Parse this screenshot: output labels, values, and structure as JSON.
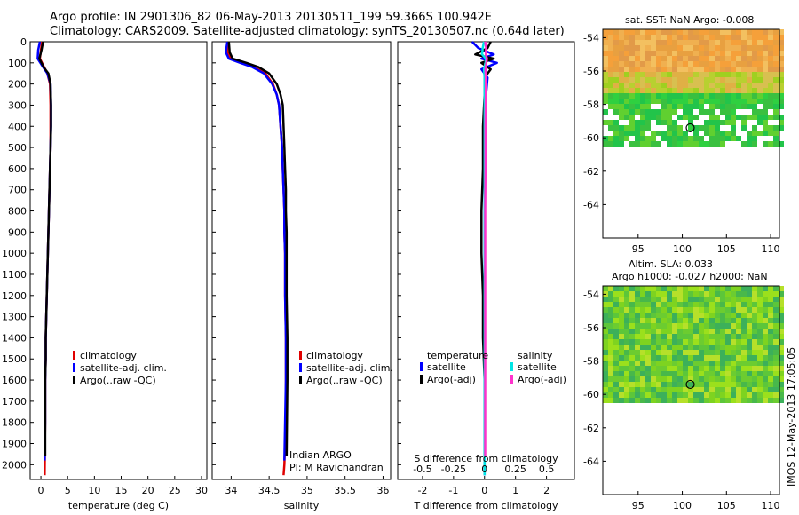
{
  "header": {
    "title_line1": "Argo profile: IN 2901306_82 06-May-2013 20130511_199 59.366S 100.942E",
    "title_line2": "Climatology: CARS2009. Satellite-adjusted climatology: synTS_20130507.nc (0.64d later)"
  },
  "side_label": "IMOS 12-May-2013 17:05:05",
  "colors": {
    "clim": "#e00000",
    "sat": "#0000ff",
    "argo": "#000000",
    "sal_sat": "#00e5e5",
    "sal_argo": "#ff33cc"
  },
  "chart_data": [
    {
      "type": "line",
      "id": "temperature",
      "xlabel": "temperature (deg C)",
      "xlim": [
        -2,
        31
      ],
      "ylim": [
        2070,
        0
      ],
      "xticks": [
        0,
        5,
        10,
        15,
        20,
        25,
        30
      ],
      "yticks": [
        0,
        100,
        200,
        300,
        400,
        500,
        600,
        700,
        800,
        900,
        1000,
        1100,
        1200,
        1300,
        1400,
        1500,
        1600,
        1700,
        1800,
        1900,
        2000
      ],
      "legend": [
        "climatology",
        "satellite-adj. clim.",
        "Argo(..raw -QC)"
      ],
      "series": [
        {
          "name": "climatology",
          "color": "#e00000",
          "x": [
            0.2,
            0.0,
            -0.2,
            0.6,
            1.2,
            1.7,
            1.8,
            1.8,
            1.8,
            1.7,
            1.6,
            1.5,
            1.4,
            1.3,
            1.2,
            1.1,
            1.0,
            0.9,
            0.9,
            0.8,
            0.8,
            0.7
          ],
          "y": [
            0,
            40,
            80,
            120,
            150,
            200,
            300,
            400,
            500,
            600,
            700,
            800,
            900,
            1000,
            1100,
            1200,
            1300,
            1400,
            1500,
            1600,
            1800,
            2050
          ]
        },
        {
          "name": "satellite-adj. clim.",
          "color": "#0000ff",
          "x": [
            -0.2,
            -0.5,
            -0.6,
            0.4,
            1.2,
            1.8,
            1.9,
            1.9,
            1.8,
            1.7,
            1.6,
            1.5,
            1.4,
            1.3,
            1.2,
            1.1,
            1.0,
            0.9,
            0.9,
            0.8,
            0.8,
            0.7
          ],
          "y": [
            0,
            40,
            80,
            120,
            150,
            200,
            300,
            400,
            500,
            600,
            700,
            800,
            900,
            1000,
            1100,
            1200,
            1300,
            1400,
            1500,
            1600,
            1800,
            1980
          ]
        },
        {
          "name": "Argo(..raw -QC)",
          "color": "#000000",
          "x": [
            0.4,
            0.1,
            -0.3,
            0.5,
            1.4,
            1.8,
            1.9,
            1.9,
            1.8,
            1.7,
            1.6,
            1.5,
            1.4,
            1.3,
            1.2,
            1.1,
            1.0,
            0.9,
            0.9,
            0.8,
            0.8
          ],
          "y": [
            0,
            40,
            80,
            120,
            150,
            200,
            300,
            400,
            500,
            600,
            700,
            800,
            900,
            1000,
            1100,
            1200,
            1300,
            1400,
            1500,
            1600,
            1960
          ]
        }
      ]
    },
    {
      "type": "line",
      "id": "salinity",
      "xlabel": "salinity",
      "xlim": [
        33.75,
        36.1
      ],
      "ylim": [
        2070,
        0
      ],
      "xticks": [
        34,
        34.5,
        35,
        35.5,
        36
      ],
      "legend": [
        "climatology",
        "satellite-adj. clim.",
        "Argo(..raw -QC)"
      ],
      "annotation": [
        "Indian ARGO",
        "PI: M Ravichandran"
      ],
      "series": [
        {
          "name": "climatology",
          "color": "#e00000",
          "x": [
            33.95,
            33.95,
            34.0,
            34.15,
            34.3,
            34.45,
            34.55,
            34.6,
            34.63,
            34.65,
            34.67,
            34.68,
            34.69,
            34.7,
            34.7,
            34.71,
            34.71,
            34.72,
            34.72,
            34.72,
            34.72,
            34.7,
            34.69
          ],
          "y": [
            0,
            50,
            80,
            100,
            120,
            150,
            200,
            250,
            300,
            400,
            500,
            600,
            700,
            800,
            900,
            1000,
            1200,
            1400,
            1500,
            1600,
            1800,
            2000,
            2050
          ]
        },
        {
          "name": "satellite-adj. clim.",
          "color": "#0000ff",
          "x": [
            33.95,
            33.93,
            33.97,
            34.12,
            34.28,
            34.43,
            34.54,
            34.6,
            34.63,
            34.65,
            34.67,
            34.68,
            34.69,
            34.7,
            34.7,
            34.71,
            34.71,
            34.72,
            34.72,
            34.72,
            34.71,
            34.7
          ],
          "y": [
            0,
            50,
            80,
            100,
            120,
            150,
            200,
            250,
            300,
            400,
            500,
            600,
            700,
            800,
            900,
            1000,
            1200,
            1400,
            1500,
            1600,
            1800,
            1980
          ]
        },
        {
          "name": "Argo(..raw -QC)",
          "color": "#000000",
          "x": [
            33.97,
            33.98,
            34.02,
            34.2,
            34.36,
            34.5,
            34.6,
            34.65,
            34.68,
            34.69,
            34.7,
            34.71,
            34.72,
            34.72,
            34.73,
            34.73,
            34.73,
            34.74,
            34.74,
            34.74,
            34.73
          ],
          "y": [
            0,
            50,
            80,
            100,
            120,
            150,
            200,
            250,
            300,
            400,
            500,
            600,
            700,
            800,
            900,
            1000,
            1200,
            1400,
            1500,
            1600,
            1960
          ]
        }
      ]
    },
    {
      "type": "line",
      "id": "differences",
      "xlabel": "T difference from climatology",
      "top_label": "S difference from climatology",
      "xlim": [
        -2.8,
        2.9
      ],
      "ylim": [
        2070,
        0
      ],
      "xticks": [
        -2,
        -1,
        0,
        1,
        2
      ],
      "top_ticks": [
        "-0.5",
        "-0.25",
        "0",
        "0.25",
        "0.5"
      ],
      "top_xlim": [
        -0.7,
        0.725
      ],
      "legend_temperature_title": "temperature",
      "legend_salinity_title": "salinity",
      "legend_temperature": [
        "satellite",
        "Argo(-adj)"
      ],
      "legend_salinity": [
        "satellite",
        "Argo(-adj)"
      ],
      "series": [
        {
          "name": "T satellite",
          "color": "#0000ff",
          "x": [
            -0.4,
            -0.2,
            0.3,
            -0.1,
            0.4,
            -0.1,
            0.1,
            0.05,
            0.0,
            0.0,
            0.0,
            0.0,
            0.0,
            0.0,
            0.0,
            0.0,
            0.0,
            0.0
          ],
          "y": [
            0,
            30,
            60,
            80,
            100,
            130,
            170,
            250,
            400,
            600,
            800,
            1000,
            1200,
            1400,
            1600,
            1800,
            2000,
            2050
          ]
        },
        {
          "name": "T Argo(-adj)",
          "color": "#000000",
          "x": [
            0.2,
            0.1,
            -0.3,
            0.3,
            -0.1,
            0.2,
            0.0,
            0.0,
            -0.05,
            -0.05,
            -0.1,
            -0.1,
            -0.05,
            -0.05,
            0.0,
            0.0,
            0.0,
            0.0
          ],
          "y": [
            0,
            30,
            60,
            80,
            100,
            130,
            170,
            250,
            400,
            600,
            800,
            1000,
            1200,
            1400,
            1600,
            1800,
            1900,
            1960
          ]
        },
        {
          "name": "S satellite",
          "color": "#00e5e5",
          "x": [
            -0.02,
            -0.06,
            -0.08,
            0.05,
            0.03,
            -0.02,
            0.0,
            0.0,
            0.0,
            0.0,
            0.0,
            0.0,
            0.0,
            0.0,
            0.0,
            0.0,
            0.0,
            0.0
          ],
          "y": [
            0,
            30,
            60,
            80,
            100,
            130,
            170,
            250,
            400,
            600,
            800,
            1000,
            1200,
            1400,
            1600,
            1800,
            2000,
            2050
          ]
        },
        {
          "name": "S Argo(-adj)",
          "color": "#ff33cc",
          "x": [
            0.02,
            0.05,
            0.04,
            0.08,
            0.06,
            0.03,
            0.04,
            0.04,
            0.03,
            0.03,
            0.02,
            0.02,
            0.02,
            0.02,
            0.02,
            0.02,
            0.02,
            0.02
          ],
          "y": [
            0,
            30,
            60,
            80,
            100,
            130,
            170,
            250,
            400,
            600,
            800,
            1000,
            1200,
            1400,
            1600,
            1800,
            1900,
            1960
          ]
        }
      ]
    },
    {
      "type": "heatmap",
      "id": "sst_map",
      "title": "sat. SST: NaN Argo: -0.008",
      "xticks": [
        95,
        100,
        105,
        110
      ],
      "yticks": [
        -54,
        -56,
        -58,
        -60,
        -62,
        -64
      ],
      "xlim": [
        91,
        111
      ],
      "ylim": [
        -66,
        -53.5
      ],
      "marker": {
        "lon": 100.9,
        "lat": -59.4
      }
    },
    {
      "type": "heatmap",
      "id": "sla_map",
      "title_line1": "Altim. SLA: 0.033",
      "title_line2": "Argo h1000: -0.027 h2000: NaN",
      "xticks": [
        95,
        100,
        105,
        110
      ],
      "yticks": [
        -54,
        -56,
        -58,
        -60,
        -62,
        -64
      ],
      "xlim": [
        91,
        111
      ],
      "ylim": [
        -66,
        -53.5
      ],
      "marker": {
        "lon": 100.9,
        "lat": -59.4
      }
    }
  ]
}
